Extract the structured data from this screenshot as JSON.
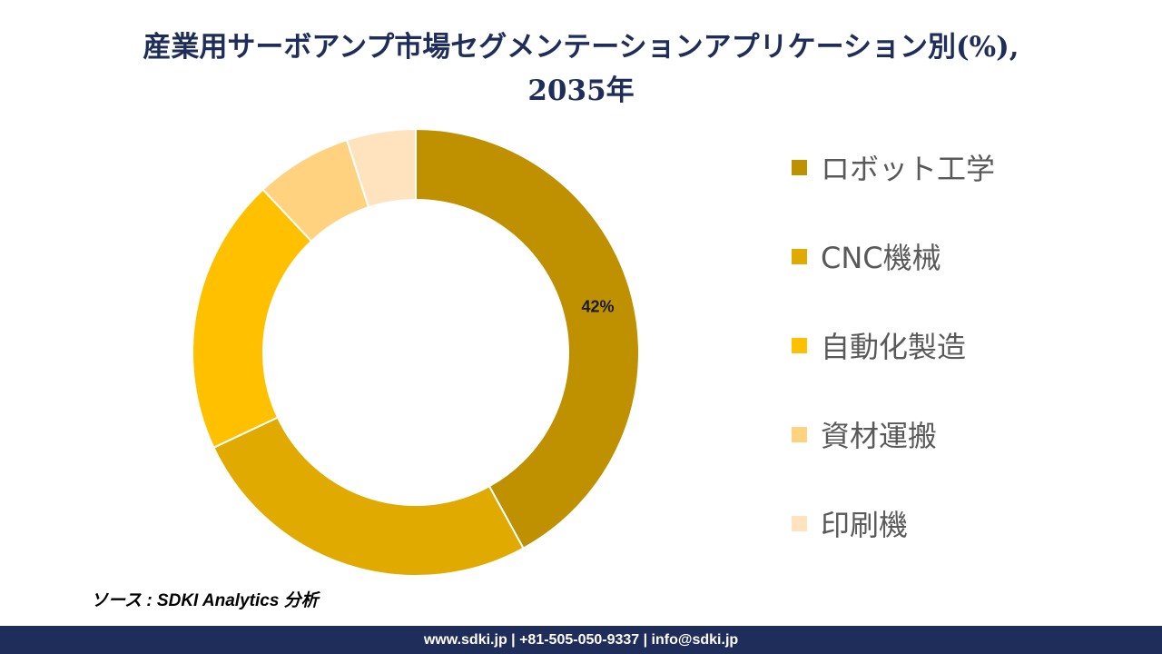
{
  "header": {
    "title_line1": "産業用サーボアンプ市場セグメンテーションアプリケーション別(%),",
    "title_line2": "2035年"
  },
  "chart_data": {
    "type": "pie",
    "donut": true,
    "categories": [
      "ロボット工学",
      "CNC機械",
      "自動化製造",
      "資材運搬",
      "印刷機"
    ],
    "values": [
      42,
      26,
      20,
      7,
      5
    ],
    "colors": [
      "#bf9000",
      "#e0aa00",
      "#ffc000",
      "#ffd280",
      "#ffe3bf"
    ],
    "data_labels": [
      "42%",
      "",
      "",
      "",
      ""
    ],
    "legend_position": "right"
  },
  "source": "ソース : SDKI Analytics 分析",
  "footer": "www.sdki.jp | +81-505-050-9337 | info@sdki.jp"
}
